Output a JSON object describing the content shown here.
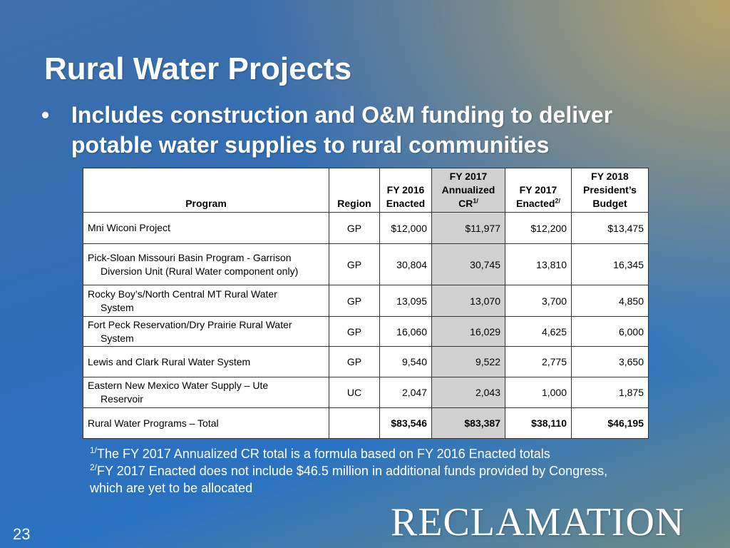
{
  "slide": {
    "title": "Rural Water Projects",
    "bullet": "Includes construction and O&M funding to deliver potable water supplies to rural communities",
    "page_number": "23",
    "logo_text": "RECLAMATION"
  },
  "table": {
    "headers": {
      "program": "Program",
      "region": "Region",
      "fy2016_line1": "FY 2016",
      "fy2016_line2": "Enacted",
      "fy2017cr_line1": "FY 2017",
      "fy2017cr_line2": "Annualized",
      "fy2017cr_line3": "CR",
      "fy2017cr_sup": "1/",
      "fy2017_line1": "FY 2017",
      "fy2017_line2": "Enacted",
      "fy2017_sup": "2/",
      "fy2018_line1": "FY 2018",
      "fy2018_line2": "President’s",
      "fy2018_line3": "Budget"
    },
    "rows": [
      {
        "program_line1": "Mni Wiconi Project",
        "program_line2": "",
        "region": "GP",
        "fy2016": "$12,000",
        "fy2017_cr": "$11,977",
        "fy2017": "$12,200",
        "fy2018": "$13,475"
      },
      {
        "program_line1": "Pick-Sloan Missouri Basin Program - Garrison",
        "program_line2": "Diversion Unit (Rural Water component only)",
        "region": "GP",
        "fy2016": "30,804",
        "fy2017_cr": "30,745",
        "fy2017": "13,810",
        "fy2018": "16,345"
      },
      {
        "program_line1": "Rocky Boy’s/North Central MT Rural Water",
        "program_line2": "System",
        "region": "GP",
        "fy2016": "13,095",
        "fy2017_cr": "13,070",
        "fy2017": "3,700",
        "fy2018": "4,850"
      },
      {
        "program_line1": "Fort Peck Reservation/Dry Prairie Rural Water",
        "program_line2": "System",
        "region": "GP",
        "fy2016": "16,060",
        "fy2017_cr": "16,029",
        "fy2017": "4,625",
        "fy2018": "6,000"
      },
      {
        "program_line1": "Lewis and Clark Rural Water System",
        "program_line2": "",
        "region": "GP",
        "fy2016": "9,540",
        "fy2017_cr": "9,522",
        "fy2017": "2,775",
        "fy2018": "3,650"
      },
      {
        "program_line1": "Eastern New Mexico Water Supply – Ute",
        "program_line2": "Reservoir",
        "region": "UC",
        "fy2016": "2,047",
        "fy2017_cr": "2,043",
        "fy2017": "1,000",
        "fy2018": "1,875"
      }
    ],
    "total": {
      "program": "Rural Water Programs – Total",
      "region": "",
      "fy2016": "$83,546",
      "fy2017_cr": "$83,387",
      "fy2017": "$38,110",
      "fy2018": "$46,195"
    }
  },
  "footnotes": {
    "note1_marker": "1/",
    "note1_text": "The FY 2017 Annualized CR total is a formula based on FY 2016 Enacted totals",
    "note2_marker": "2/",
    "note2_text": "FY 2017 Enacted does not include $46.5 million in additional funds provided by Congress, which are yet to be allocated"
  }
}
